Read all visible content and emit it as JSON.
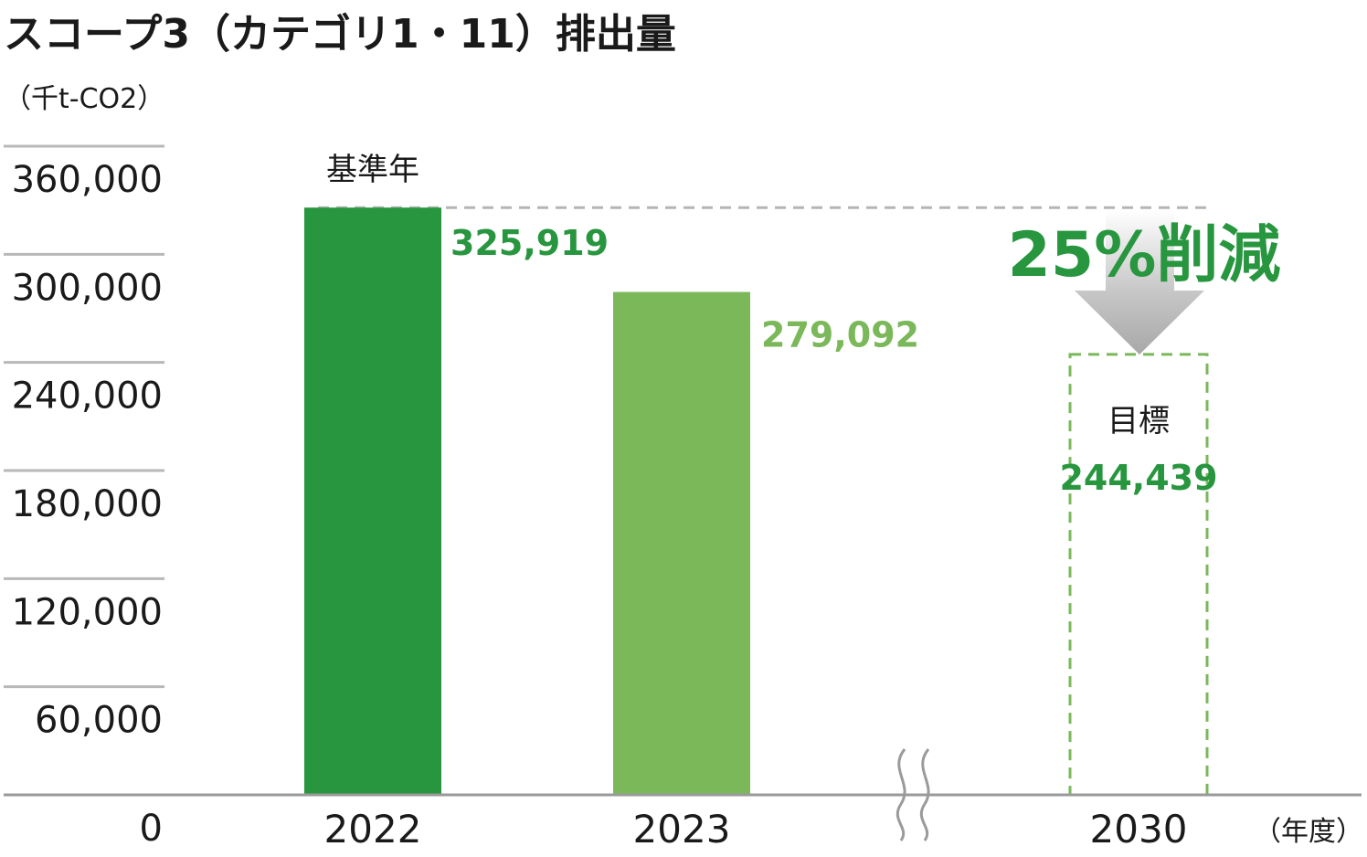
{
  "chart_data": {
    "type": "bar",
    "title": "スコープ3（カテゴリ1・11）排出量",
    "ylabel": "（千t-CO2）",
    "xlabel": "（年度）",
    "categories": [
      "2022",
      "2023",
      "2030"
    ],
    "values": [
      325919,
      279092,
      244439
    ],
    "value_labels": [
      "325,919",
      "279,092",
      "244,439"
    ],
    "yticks": [
      "0",
      "60,000",
      "120,000",
      "180,000",
      "240,000",
      "300,000",
      "360,000"
    ],
    "ytick_values": [
      0,
      60000,
      120000,
      180000,
      240000,
      300000,
      360000
    ],
    "ylim": [
      0,
      360000
    ],
    "grid": true,
    "axis_break": "between 2023 and 2030",
    "annotations": {
      "baseline": "基準年",
      "target": "目標",
      "reduction": "25%削減"
    },
    "colors": {
      "bar_2022": "#27963F",
      "bar_2023": "#7AB85A",
      "target_outline": "#7AB85A",
      "label_green": "#27963F",
      "label_light": "#7AB85A",
      "grid": "#b8b8b8",
      "axis": "#9a9a9a"
    }
  }
}
